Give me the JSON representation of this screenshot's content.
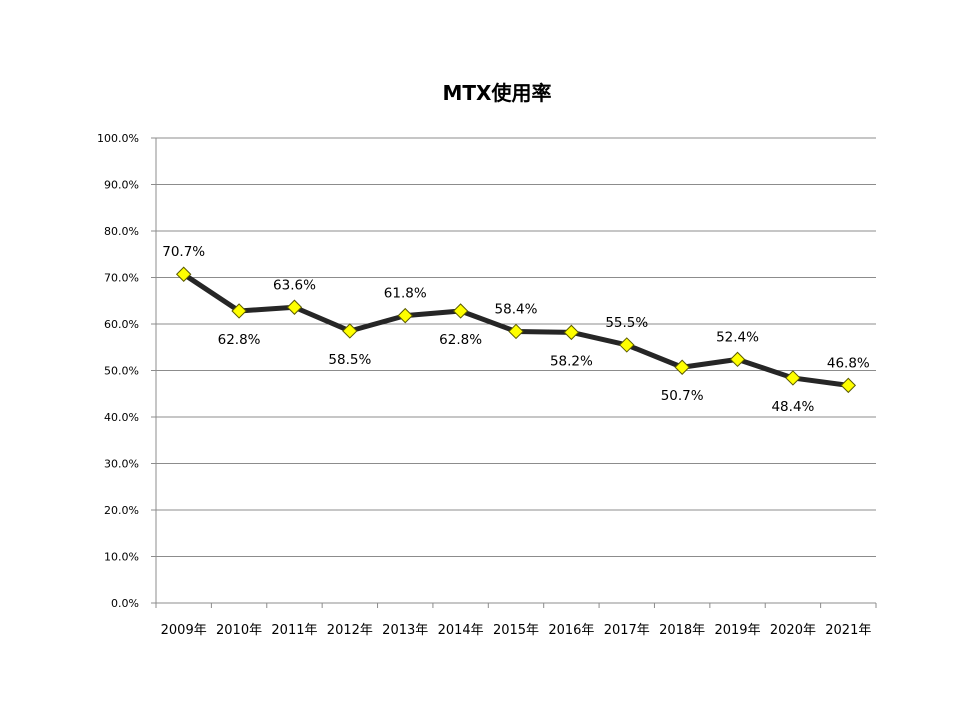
{
  "chart_data": {
    "type": "line",
    "title": "MTX使用率",
    "xlabel": "",
    "ylabel": "",
    "categories": [
      "2009年",
      "2010年",
      "2011年",
      "2012年",
      "2013年",
      "2014年",
      "2015年",
      "2016年",
      "2017年",
      "2018年",
      "2019年",
      "2020年",
      "2021年"
    ],
    "series": [
      {
        "values": [
          70.7,
          62.8,
          63.6,
          58.5,
          61.8,
          62.8,
          58.4,
          58.2,
          55.5,
          50.7,
          52.4,
          48.4,
          46.8
        ],
        "data_labels": [
          "70.7%",
          "62.8%",
          "63.6%",
          "58.5%",
          "61.8%",
          "62.8%",
          "58.4%",
          "58.2%",
          "55.5%",
          "50.7%",
          "52.4%",
          "48.4%",
          "46.8%"
        ],
        "label_positions": [
          "above",
          "below",
          "above",
          "below",
          "above",
          "below",
          "above",
          "below",
          "above",
          "below",
          "above",
          "below",
          "above"
        ],
        "line_color": "#262626",
        "marker": "diamond",
        "marker_color": "#ffff00"
      }
    ],
    "ylim": [
      0,
      100
    ],
    "yticks": [
      "0.0%",
      "10.0%",
      "20.0%",
      "30.0%",
      "40.0%",
      "50.0%",
      "60.0%",
      "70.0%",
      "80.0%",
      "90.0%",
      "100.0%"
    ],
    "grid": true,
    "legend": "none"
  }
}
